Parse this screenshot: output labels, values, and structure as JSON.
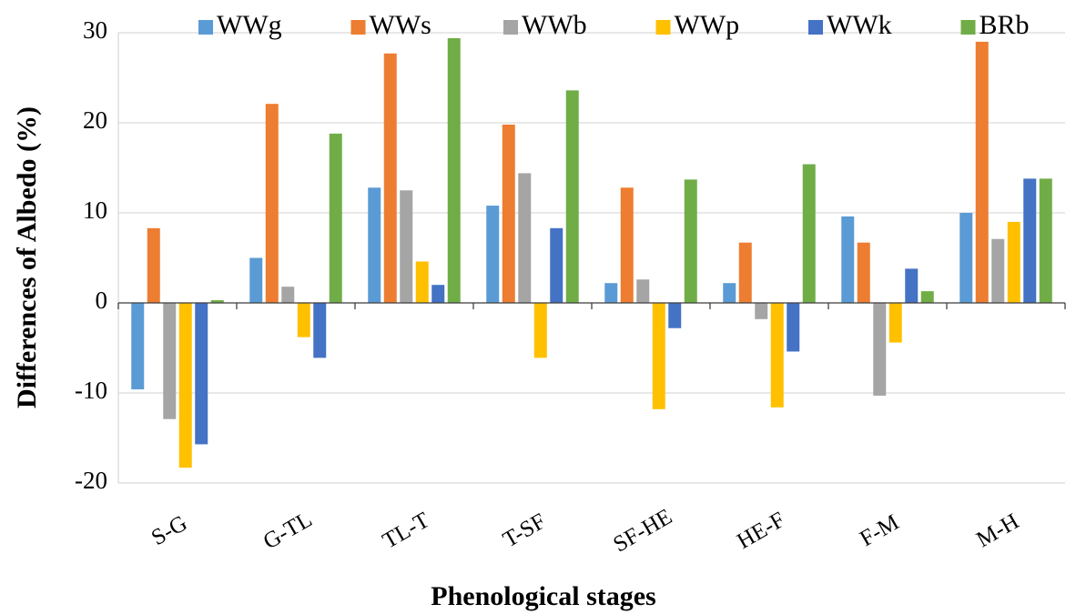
{
  "chart_data": {
    "type": "bar",
    "x_label": "Phenological stages",
    "y_label": "Differences of Albedo (%)",
    "categories": [
      "S-G",
      "G-TL",
      "TL-T",
      "T-SF",
      "SF-HE",
      "HE-F",
      "F-M",
      "M-H"
    ],
    "series": [
      {
        "name": "WWg",
        "color": "#5b9bd5",
        "values": [
          -9.6,
          5.0,
          12.8,
          10.8,
          2.2,
          2.2,
          9.6,
          10.0
        ]
      },
      {
        "name": "WWs",
        "color": "#ed7d31",
        "values": [
          8.3,
          22.1,
          27.7,
          19.8,
          12.8,
          6.7,
          6.7,
          29.0
        ]
      },
      {
        "name": "WWb",
        "color": "#a5a5a5",
        "values": [
          -12.9,
          1.8,
          12.5,
          14.4,
          2.6,
          -1.8,
          -10.3,
          7.1
        ]
      },
      {
        "name": "WWp",
        "color": "#ffc000",
        "values": [
          -18.3,
          -3.8,
          4.6,
          -6.1,
          -11.8,
          -11.6,
          -4.4,
          9.0
        ]
      },
      {
        "name": "WWk",
        "color": "#4472c4",
        "values": [
          -15.7,
          -6.1,
          2.0,
          8.3,
          -2.8,
          -5.4,
          3.8,
          13.8
        ]
      },
      {
        "name": "BRb",
        "color": "#70ad47",
        "values": [
          0.3,
          18.8,
          29.4,
          23.6,
          13.7,
          15.4,
          1.3,
          13.8
        ]
      }
    ],
    "ylim": [
      -20,
      30
    ],
    "yticks": [
      -20,
      -10,
      0,
      10,
      20,
      30
    ],
    "grid": true,
    "legend": "top"
  }
}
